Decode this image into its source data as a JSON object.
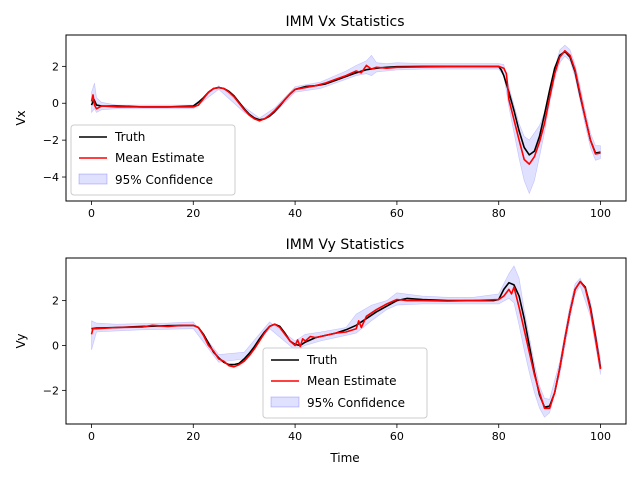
{
  "chart_data": [
    {
      "type": "line",
      "title": "IMM Vx Statistics",
      "xlabel": "",
      "ylabel": "Vx",
      "xlim": [
        -5,
        105
      ],
      "ylim": [
        -5.3,
        3.7
      ],
      "xticks": [
        "0",
        "20",
        "40",
        "60",
        "80",
        "100"
      ],
      "yticks": [
        "-4",
        "-2",
        "0",
        "2"
      ],
      "legend_position": "lower-left",
      "series": [
        {
          "name": "Truth",
          "color": "#000000",
          "x": [
            0,
            0.5,
            1,
            2,
            5,
            10,
            15,
            20,
            21,
            22,
            23,
            24,
            25,
            26,
            27,
            28,
            29,
            30,
            31,
            32,
            33,
            34,
            35,
            36,
            37,
            38,
            39,
            40,
            42,
            44,
            46,
            48,
            50,
            52,
            54,
            56,
            58,
            60,
            65,
            70,
            75,
            78,
            79,
            80,
            80.5,
            81,
            82,
            83,
            84,
            85,
            86,
            87,
            88,
            89,
            90,
            91,
            92,
            93,
            94,
            95,
            96,
            97,
            98,
            99,
            100
          ],
          "y": [
            -0.1,
            0.2,
            -0.1,
            -0.15,
            -0.15,
            -0.2,
            -0.2,
            -0.15,
            0.05,
            0.3,
            0.6,
            0.8,
            0.85,
            0.8,
            0.65,
            0.4,
            0.05,
            -0.3,
            -0.6,
            -0.8,
            -0.9,
            -0.85,
            -0.7,
            -0.45,
            -0.15,
            0.2,
            0.5,
            0.75,
            0.9,
            0.95,
            1.05,
            1.25,
            1.45,
            1.65,
            1.82,
            1.9,
            1.95,
            1.98,
            2.0,
            2.0,
            2.0,
            2.0,
            2.0,
            2.0,
            1.8,
            1.5,
            0.6,
            -0.4,
            -1.5,
            -2.4,
            -2.8,
            -2.6,
            -1.8,
            -0.6,
            0.7,
            1.9,
            2.6,
            2.8,
            2.5,
            1.7,
            0.4,
            -0.8,
            -2.0,
            -2.7,
            -2.65
          ]
        },
        {
          "name": "Mean Estimate",
          "color": "#ff0000",
          "x": [
            0,
            0.3,
            0.6,
            1,
            2,
            5,
            10,
            15,
            20,
            21,
            22,
            23,
            24,
            25,
            26,
            27,
            28,
            29,
            30,
            31,
            32,
            33,
            34,
            35,
            36,
            37,
            38,
            39,
            40,
            42,
            44,
            46,
            48,
            50,
            52,
            53,
            54,
            55,
            56,
            58,
            60,
            65,
            70,
            75,
            78,
            80,
            81,
            81.5,
            82,
            83,
            84,
            85,
            86,
            87,
            88,
            89,
            90,
            91,
            92,
            93,
            94,
            95,
            96,
            97,
            98,
            99,
            100
          ],
          "y": [
            0.1,
            0.45,
            -0.1,
            -0.3,
            -0.15,
            -0.2,
            -0.2,
            -0.2,
            -0.2,
            -0.1,
            0.25,
            0.6,
            0.8,
            0.85,
            0.8,
            0.6,
            0.35,
            0.0,
            -0.35,
            -0.65,
            -0.85,
            -0.95,
            -0.85,
            -0.65,
            -0.4,
            -0.1,
            0.2,
            0.5,
            0.75,
            0.85,
            0.95,
            1.1,
            1.3,
            1.5,
            1.75,
            1.65,
            2.05,
            1.85,
            1.95,
            1.9,
            1.95,
            1.97,
            1.98,
            1.99,
            2.0,
            2.0,
            1.9,
            1.6,
            0.2,
            -0.9,
            -2.0,
            -3.05,
            -3.3,
            -2.9,
            -2.1,
            -1.1,
            0.3,
            1.6,
            2.5,
            2.85,
            2.6,
            1.8,
            0.5,
            -0.8,
            -2.0,
            -2.75,
            -2.7
          ]
        },
        {
          "name": "95% Confidence",
          "type": "area",
          "color": "#0000ff",
          "x": [
            0,
            0.6,
            1,
            2,
            5,
            10,
            15,
            20,
            25,
            30,
            33,
            36,
            40,
            45,
            50,
            52,
            54,
            55,
            56,
            58,
            60,
            65,
            70,
            75,
            80,
            81,
            82,
            83,
            84,
            85,
            86,
            87,
            88,
            89,
            90,
            91,
            92,
            93,
            94,
            95,
            96,
            97,
            98,
            99,
            100
          ],
          "lower": [
            -0.5,
            -0.3,
            -0.5,
            -0.35,
            -0.3,
            -0.3,
            -0.3,
            -0.3,
            0.75,
            -0.5,
            -1.0,
            -0.55,
            0.6,
            0.8,
            1.3,
            1.5,
            1.6,
            1.5,
            1.7,
            1.75,
            1.8,
            1.85,
            1.85,
            1.85,
            1.85,
            1.5,
            -0.2,
            -1.6,
            -3.0,
            -4.2,
            -4.9,
            -4.2,
            -2.9,
            -1.6,
            0.0,
            1.3,
            2.2,
            2.55,
            2.3,
            1.4,
            0.1,
            -1.2,
            -2.4,
            -3.1,
            -3.0
          ],
          "upper": [
            0.6,
            1.1,
            0.3,
            0.05,
            -0.1,
            -0.1,
            -0.1,
            -0.1,
            0.95,
            -0.2,
            -0.8,
            -0.25,
            0.9,
            1.15,
            1.75,
            2.05,
            2.3,
            2.6,
            2.2,
            2.15,
            2.2,
            2.15,
            2.15,
            2.15,
            2.15,
            2.1,
            0.9,
            -0.1,
            -1.1,
            -1.8,
            -2.0,
            -1.6,
            -1.2,
            -0.5,
            0.6,
            1.9,
            2.9,
            3.15,
            2.9,
            2.1,
            0.9,
            -0.4,
            -1.6,
            -2.3,
            -2.3
          ]
        }
      ]
    },
    {
      "type": "line",
      "title": "IMM Vy Statistics",
      "xlabel": "Time",
      "ylabel": "Vy",
      "xlim": [
        -5,
        105
      ],
      "ylim": [
        -3.5,
        3.9
      ],
      "xticks": [
        "0",
        "20",
        "40",
        "60",
        "80",
        "100"
      ],
      "yticks": [
        "-2",
        "0",
        "2"
      ],
      "legend_position": "lower-center",
      "series": [
        {
          "name": "Truth",
          "color": "#000000",
          "x": [
            0,
            1,
            5,
            10,
            15,
            20,
            21,
            22,
            23,
            24,
            25,
            26,
            27,
            28,
            29,
            30,
            31,
            32,
            33,
            34,
            35,
            36,
            37,
            38,
            39,
            40,
            41,
            42,
            44,
            46,
            48,
            50,
            52,
            54,
            56,
            58,
            60,
            62,
            65,
            70,
            75,
            78,
            79,
            80,
            81,
            82,
            83,
            84,
            85,
            86,
            87,
            88,
            89,
            90,
            91,
            92,
            93,
            94,
            95,
            96,
            97,
            98,
            99,
            100
          ],
          "y": [
            0.75,
            0.78,
            0.8,
            0.85,
            0.88,
            0.9,
            0.8,
            0.5,
            0.1,
            -0.3,
            -0.55,
            -0.75,
            -0.85,
            -0.85,
            -0.8,
            -0.6,
            -0.35,
            -0.05,
            0.3,
            0.6,
            0.85,
            0.95,
            0.85,
            0.55,
            0.2,
            0.05,
            0.0,
            0.15,
            0.35,
            0.45,
            0.55,
            0.7,
            0.9,
            1.2,
            1.5,
            1.75,
            2.0,
            2.1,
            2.05,
            2.0,
            2.0,
            2.0,
            2.0,
            2.05,
            2.5,
            2.8,
            2.7,
            2.2,
            1.2,
            0.0,
            -1.2,
            -2.2,
            -2.75,
            -2.7,
            -2.1,
            -1.0,
            0.3,
            1.5,
            2.5,
            2.85,
            2.6,
            1.7,
            0.4,
            -1.0
          ]
        },
        {
          "name": "Mean Estimate",
          "color": "#ff0000",
          "x": [
            0,
            0.3,
            1,
            5,
            10,
            12,
            15,
            18,
            20,
            21,
            22,
            23,
            24,
            25,
            26,
            27,
            28,
            29,
            30,
            31,
            32,
            33,
            34,
            35,
            36,
            37,
            38,
            39,
            40,
            40.5,
            41,
            41.5,
            42,
            43,
            44,
            46,
            48,
            50,
            52,
            52.5,
            53,
            54,
            56,
            58,
            60,
            62,
            65,
            70,
            75,
            80,
            81,
            82,
            82.5,
            83,
            84,
            85,
            86,
            87,
            88,
            89,
            90,
            91,
            92,
            93,
            94,
            95,
            96,
            97,
            98,
            99,
            100
          ],
          "y": [
            0.5,
            0.75,
            0.75,
            0.8,
            0.82,
            0.9,
            0.85,
            0.9,
            0.9,
            0.8,
            0.45,
            0.0,
            -0.25,
            -0.6,
            -0.7,
            -0.9,
            -0.95,
            -0.85,
            -0.7,
            -0.45,
            -0.15,
            0.2,
            0.55,
            0.85,
            0.95,
            0.8,
            0.5,
            0.2,
            0.0,
            0.25,
            -0.05,
            0.3,
            0.2,
            0.4,
            0.35,
            0.45,
            0.55,
            0.6,
            0.75,
            1.1,
            0.8,
            1.3,
            1.6,
            1.85,
            2.05,
            2.0,
            2.0,
            1.98,
            2.0,
            2.05,
            2.2,
            2.5,
            2.3,
            2.6,
            1.7,
            0.7,
            -0.3,
            -1.3,
            -2.1,
            -2.8,
            -2.8,
            -2.1,
            -1.0,
            0.3,
            1.5,
            2.5,
            2.85,
            2.55,
            1.6,
            0.3,
            -1.05
          ]
        },
        {
          "name": "95% Confidence",
          "type": "area",
          "color": "#0000ff",
          "x": [
            0,
            1,
            5,
            10,
            15,
            20,
            25,
            30,
            35,
            40,
            42,
            45,
            50,
            52,
            55,
            58,
            60,
            65,
            70,
            75,
            80,
            82,
            83,
            84,
            85,
            86,
            87,
            88,
            89,
            90,
            92,
            94,
            95,
            96,
            98,
            100
          ],
          "lower": [
            -0.2,
            0.6,
            0.65,
            0.7,
            0.72,
            0.75,
            -0.75,
            -0.6,
            0.75,
            -0.2,
            0.0,
            0.2,
            0.45,
            0.55,
            1.1,
            1.6,
            1.8,
            1.85,
            1.85,
            1.85,
            1.85,
            2.1,
            1.9,
            0.9,
            -0.2,
            -1.2,
            -2.1,
            -2.8,
            -3.2,
            -3.0,
            -1.3,
            1.2,
            2.3,
            2.65,
            1.3,
            -1.3
          ],
          "upper": [
            1.1,
            1.0,
            0.95,
            0.98,
            1.0,
            1.05,
            -0.4,
            -0.3,
            1.05,
            0.2,
            0.5,
            0.6,
            0.8,
            1.4,
            1.8,
            2.0,
            2.35,
            2.2,
            2.15,
            2.15,
            2.3,
            3.2,
            3.55,
            3.0,
            1.6,
            0.4,
            -0.8,
            -1.8,
            -2.35,
            -2.4,
            -0.7,
            1.8,
            2.75,
            3.0,
            2.0,
            -0.6
          ]
        }
      ]
    }
  ]
}
